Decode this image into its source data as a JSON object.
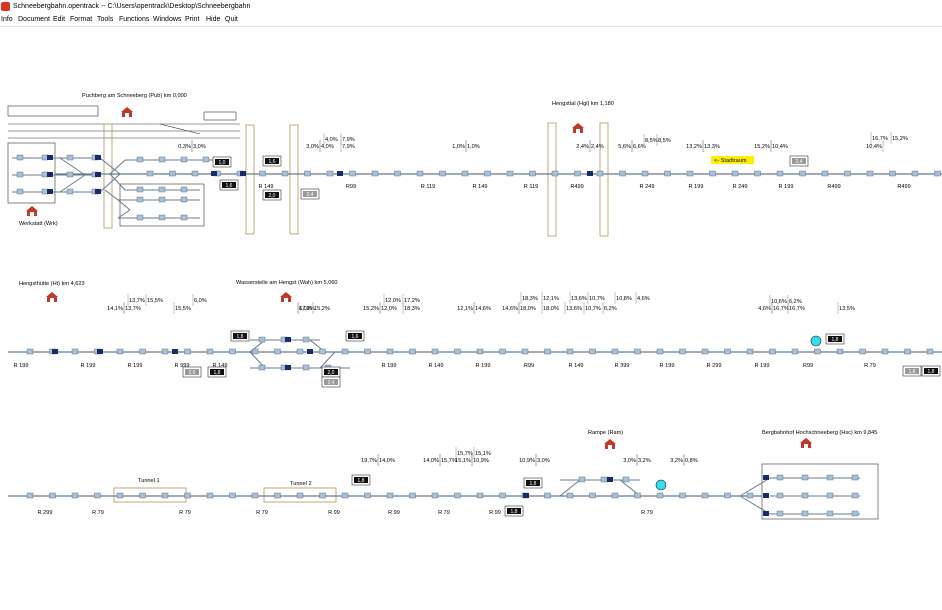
{
  "window": {
    "title": "Schneebergbahn.opentrack  --  C:\\Users\\opentrack\\Desktop\\Schneebergbahn"
  },
  "menu": [
    "Info",
    "Document",
    "Edit",
    "Format",
    "Tools",
    "Functions",
    "Windows",
    "Print",
    "Hide",
    "Quit"
  ],
  "stations": [
    {
      "label": "Puchberg am Schneeberg (Pub) km 0,000"
    },
    {
      "label": "Werkstatt (Wrk)"
    },
    {
      "label": "Hengsttal (Hgl) km 1,180"
    },
    {
      "label": "Hengsthütte (Ht) km 4,623"
    },
    {
      "label": "Wasserstelle am Hengst (Wah) km 5,060"
    },
    {
      "label": "Rampe (Ram)"
    },
    {
      "label": "Bergbahnhof Hochschneeberg (Hsc) km 9,845"
    }
  ],
  "tunnels": [
    "Tunnel 1",
    "Tunnel 2"
  ],
  "stadtraum": "<- Stadtraum",
  "row1": {
    "gradients": [
      "0,3%",
      "3,0%",
      "4,0%",
      "7,9%",
      "3,0%",
      "4,0%",
      "7,9%",
      "1,0%",
      "1,0%",
      "2,4%",
      "2,4%",
      "5,6%",
      "6,6%",
      "8,5%",
      "8,5%",
      "13,2%",
      "13,3%",
      "15,2%",
      "10,4%",
      "16,7%",
      "15,2%",
      "10,4%"
    ],
    "radii": [
      "R 149",
      "R99",
      "R 119",
      "R 149",
      "R 119",
      "R499",
      "R 249",
      "R 199",
      "R 249",
      "R 199",
      "R499",
      "R499"
    ],
    "speeds": [
      "1,0",
      "1,6",
      "1,6",
      "2,0",
      "2,4",
      "2,4"
    ]
  },
  "row2": {
    "gradients": [
      "13,7%",
      "15,5%",
      "14,1%",
      "13,7%",
      "15,5%",
      "6,0%",
      "6,0%",
      "17,2%",
      "15,2%",
      "12,0%",
      "17,2%",
      "15,2%",
      "12,0%",
      "18,3%",
      "12,1%",
      "14,6%",
      "18,3%",
      "12,1%",
      "14,6%",
      "18,0%",
      "18,0%",
      "13,6%",
      "13,6%",
      "10,7%",
      "10,7%",
      "10,8%",
      "6,2%",
      "4,6%",
      "10,6%",
      "6,2%",
      "4,6%",
      "16,7%",
      "16,7%",
      "13,5%"
    ],
    "radii": [
      "R 199",
      "R 199",
      "R 199",
      "R 999",
      "R 149",
      "R 199",
      "R 149",
      "R 199",
      "R99",
      "R 149",
      "R 399",
      "R 199",
      "R 299",
      "R 199",
      "R99",
      "R 79"
    ],
    "speeds": [
      "1,8",
      "1,6",
      "1,8",
      "2,0",
      "2,4",
      "2,0",
      "1,8",
      "1,8",
      "1,8"
    ]
  },
  "row3": {
    "gradients": [
      "19,7%",
      "14,0%",
      "14,0%",
      "15,7%",
      "15,7%",
      "15,1%",
      "15,1%",
      "10,9%",
      "10,9%",
      "3,0%",
      "3,0%",
      "3,2%",
      "3,2%",
      "0,8%"
    ],
    "radii": [
      "R 299",
      "R 79",
      "R 79",
      "R 79",
      "R 99",
      "R 99",
      "R 79",
      "R 99",
      "R 79"
    ],
    "speeds": [
      "1,8",
      "1,8",
      "1,8"
    ]
  }
}
